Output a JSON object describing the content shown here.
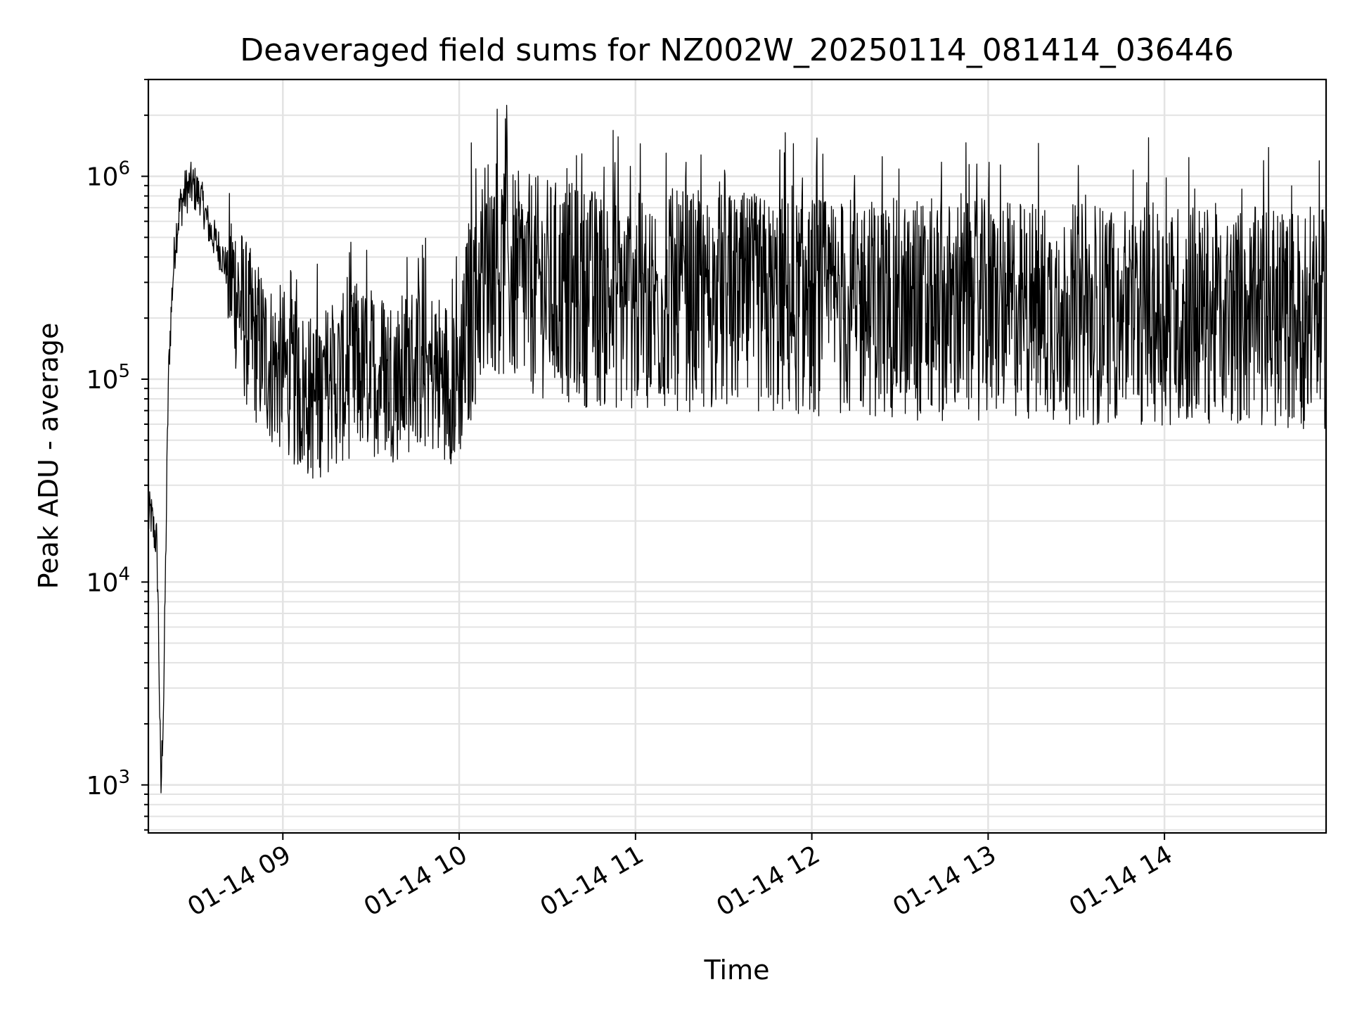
{
  "chart_data": {
    "type": "line",
    "title": "Deaveraged field sums for NZ002W_20250114_081414_036446",
    "xlabel": "Time",
    "ylabel": "Peak ADU - average",
    "yscale": "log",
    "xlim": [
      "2025-01-14T08:14:14",
      "2025-01-14T14:55:00"
    ],
    "ylim": [
      580,
      3000000
    ],
    "grid": true,
    "legend": "none",
    "line_color": "#000000",
    "x_ticks": [
      {
        "time": "2025-01-14T09:00:00",
        "label": "01-14 09"
      },
      {
        "time": "2025-01-14T10:00:00",
        "label": "01-14 10"
      },
      {
        "time": "2025-01-14T11:00:00",
        "label": "01-14 11"
      },
      {
        "time": "2025-01-14T12:00:00",
        "label": "01-14 12"
      },
      {
        "time": "2025-01-14T13:00:00",
        "label": "01-14 13"
      },
      {
        "time": "2025-01-14T14:00:00",
        "label": "01-14 14"
      }
    ],
    "y_ticks": [
      {
        "value": 1000,
        "base": "10",
        "exp": "3"
      },
      {
        "value": 10000,
        "base": "10",
        "exp": "4"
      },
      {
        "value": 100000,
        "base": "10",
        "exp": "5"
      },
      {
        "value": 1000000,
        "base": "10",
        "exp": "6"
      }
    ],
    "series": [
      {
        "x": [
          "2025-01-14T08:14:14",
          "2025-01-14T08:15:00",
          "2025-01-14T08:16:00",
          "2025-01-14T08:17:00",
          "2025-01-14T08:17:30",
          "2025-01-14T08:18:30",
          "2025-01-14T08:19:30",
          "2025-01-14T08:20:30",
          "2025-01-14T08:21:00",
          "2025-01-14T08:21:30",
          "2025-01-14T08:22:30",
          "2025-01-14T08:23:30",
          "2025-01-14T08:25:00",
          "2025-01-14T08:27:00",
          "2025-01-14T08:29:00",
          "2025-01-14T08:32:00",
          "2025-01-14T08:35:00",
          "2025-01-14T08:38:00",
          "2025-01-14T08:41:00",
          "2025-01-14T08:44:00",
          "2025-01-14T08:46:00",
          "2025-01-14T08:48:00",
          "2025-01-14T08:50:00",
          "2025-01-14T08:53:00",
          "2025-01-14T08:56:00",
          "2025-01-14T09:00:00",
          "2025-01-14T09:05:00",
          "2025-01-14T09:10:00",
          "2025-01-14T09:15:00",
          "2025-01-14T09:20:00",
          "2025-01-14T09:25:00",
          "2025-01-14T09:30:00",
          "2025-01-14T09:35:00",
          "2025-01-14T09:40:00",
          "2025-01-14T09:45:00",
          "2025-01-14T09:50:00",
          "2025-01-14T09:55:00",
          "2025-01-14T10:00:00",
          "2025-01-14T10:05:00",
          "2025-01-14T10:10:00",
          "2025-01-14T10:15:00",
          "2025-01-14T10:20:00",
          "2025-01-14T10:30:00",
          "2025-01-14T10:40:00",
          "2025-01-14T10:50:00",
          "2025-01-14T11:00:00",
          "2025-01-14T11:15:00",
          "2025-01-14T11:30:00",
          "2025-01-14T11:45:00",
          "2025-01-14T12:00:00",
          "2025-01-14T12:15:00",
          "2025-01-14T12:30:00",
          "2025-01-14T12:45:00",
          "2025-01-14T13:00:00",
          "2025-01-14T13:15:00",
          "2025-01-14T13:30:00",
          "2025-01-14T13:45:00",
          "2025-01-14T14:00:00",
          "2025-01-14T14:15:00",
          "2025-01-14T14:30:00",
          "2025-01-14T14:45:00",
          "2025-01-14T14:55:00"
        ],
        "y": [
          20000,
          22000,
          18000,
          16000,
          9000,
          900,
          3000,
          30000,
          90000,
          150000,
          300000,
          500000,
          700000,
          850000,
          900000,
          800000,
          550000,
          450000,
          350000,
          280000,
          220000,
          180000,
          160000,
          140000,
          120000,
          110000,
          90000,
          80000,
          90000,
          100000,
          110000,
          110000,
          105000,
          100000,
          120000,
          110000,
          100000,
          100000,
          250000,
          400000,
          350000,
          300000,
          280000,
          260000,
          250000,
          240000,
          240000,
          240000,
          230000,
          230000,
          230000,
          220000,
          220000,
          220000,
          220000,
          210000,
          210000,
          210000,
          210000,
          200000,
          200000,
          200000
        ]
      }
    ]
  }
}
